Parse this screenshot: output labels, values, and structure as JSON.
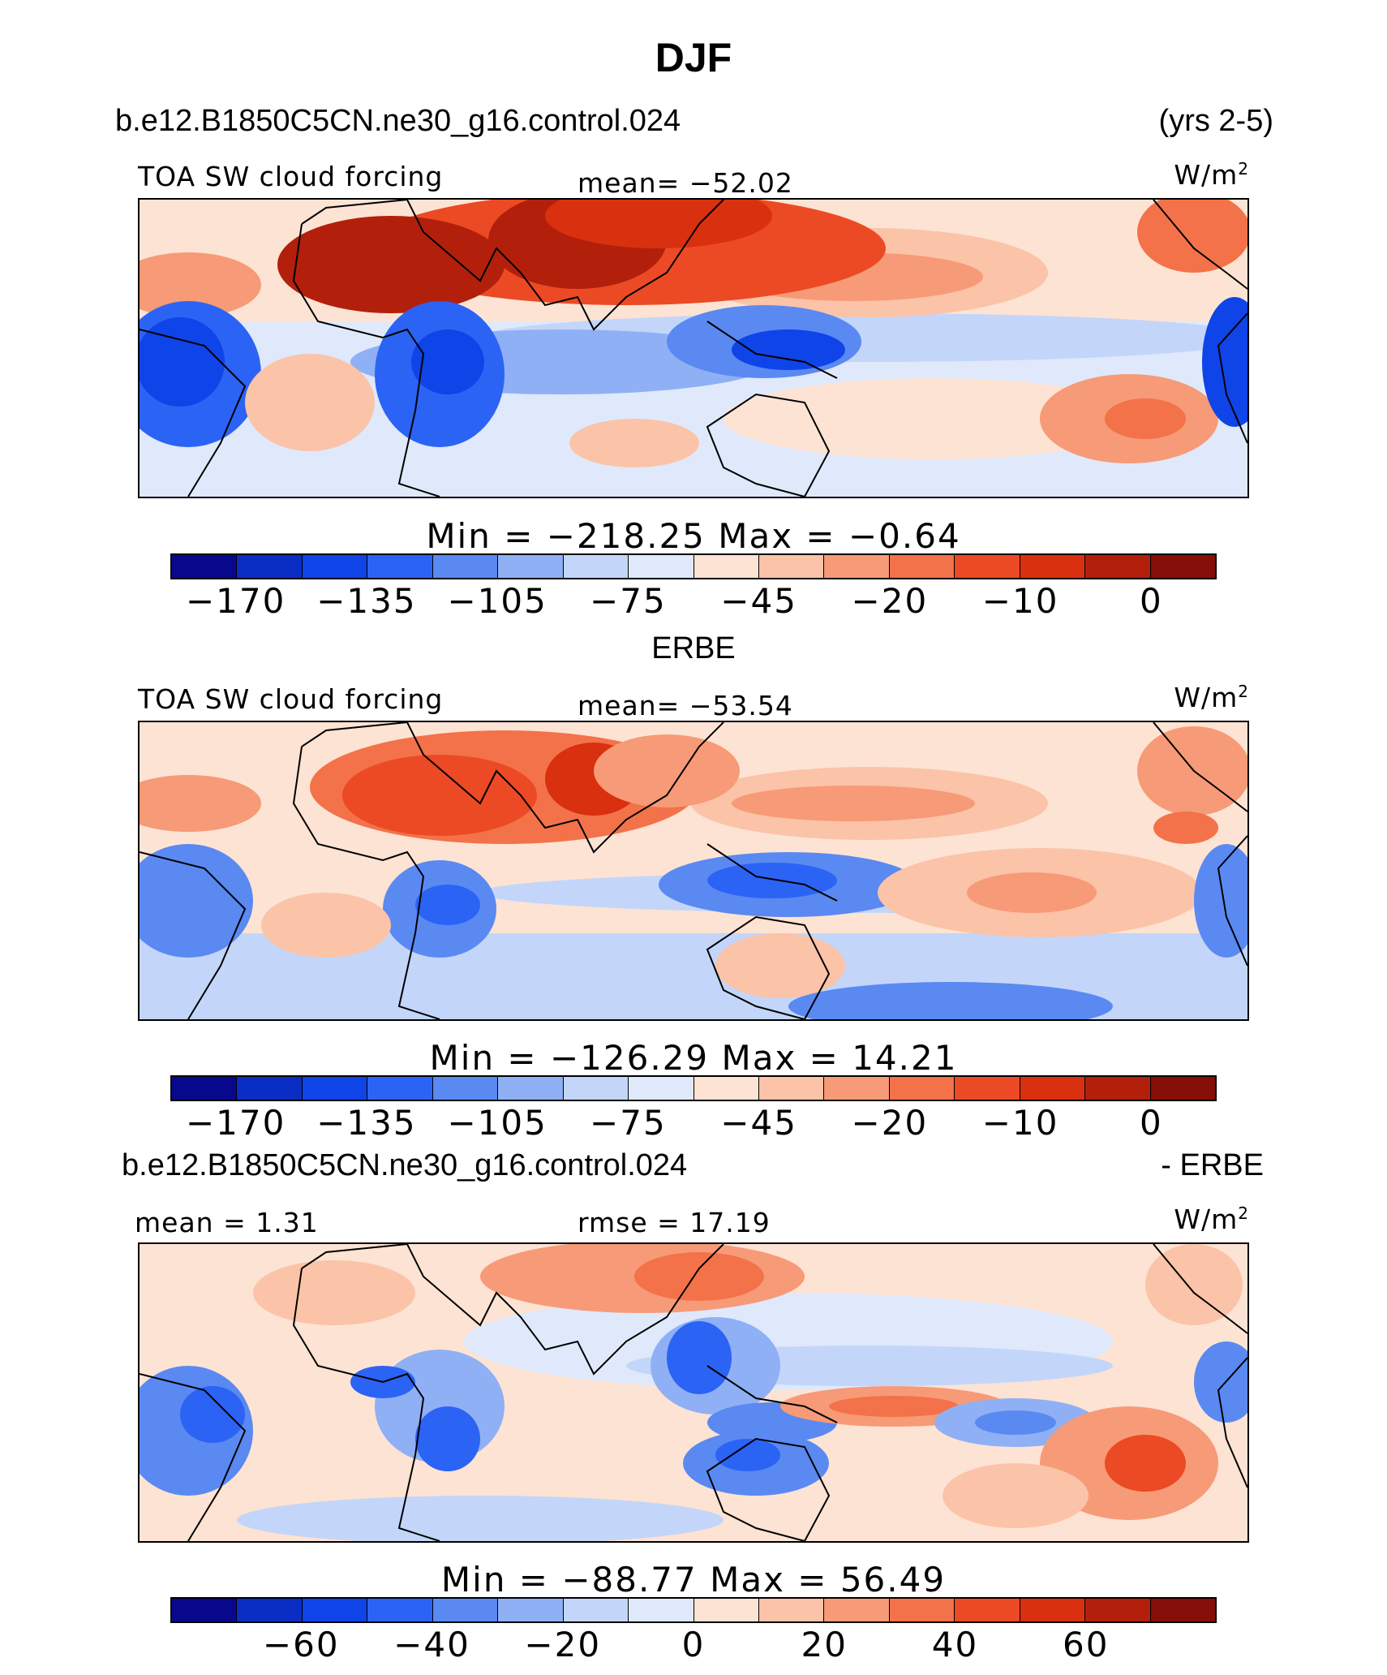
{
  "title": "DJF",
  "panels": [
    {
      "case_label": "b.e12.B1850C5CN.ne30_g16.control.024",
      "right_label": "(yrs 2-5)",
      "variable": "TOA SW cloud forcing",
      "stat_center": "mean= −52.02",
      "units": "W/m",
      "units_sup": "2",
      "min_max": "Min  =  −218.25  Max  =   −0.64",
      "colorbar_ticks": [
        "−170",
        "−135",
        "−105",
        "−75",
        "−45",
        "−20",
        "−10",
        "0"
      ]
    },
    {
      "case_label": "ERBE",
      "variable": "TOA SW cloud forcing",
      "stat_center": "mean= −53.54",
      "units": "W/m",
      "units_sup": "2",
      "min_max": "Min  =  −126.29  Max  =   14.21",
      "colorbar_ticks": [
        "−170",
        "−135",
        "−105",
        "−75",
        "−45",
        "−20",
        "−10",
        "0"
      ]
    },
    {
      "case_label": "b.e12.B1850C5CN.ne30_g16.control.024",
      "right_label": "- ERBE",
      "stat_left": "mean  =    1.31",
      "stat_center": "rmse  =   17.19",
      "units": "W/m",
      "units_sup": "2",
      "min_max": "Min  =  −88.77  Max  =   56.49",
      "colorbar_ticks": [
        "−60",
        "−40",
        "−20",
        "0",
        "20",
        "40",
        "60"
      ]
    }
  ],
  "palette": [
    "#08088c",
    "#0a2ec4",
    "#0f44e8",
    "#2b63f4",
    "#5a89f2",
    "#8fb0f5",
    "#c3d6fa",
    "#dfe9fb",
    "#fde3d3",
    "#fbc3a8",
    "#f79a77",
    "#f3724a",
    "#ec4a24",
    "#d9300f",
    "#b2200c",
    "#850f08"
  ]
}
